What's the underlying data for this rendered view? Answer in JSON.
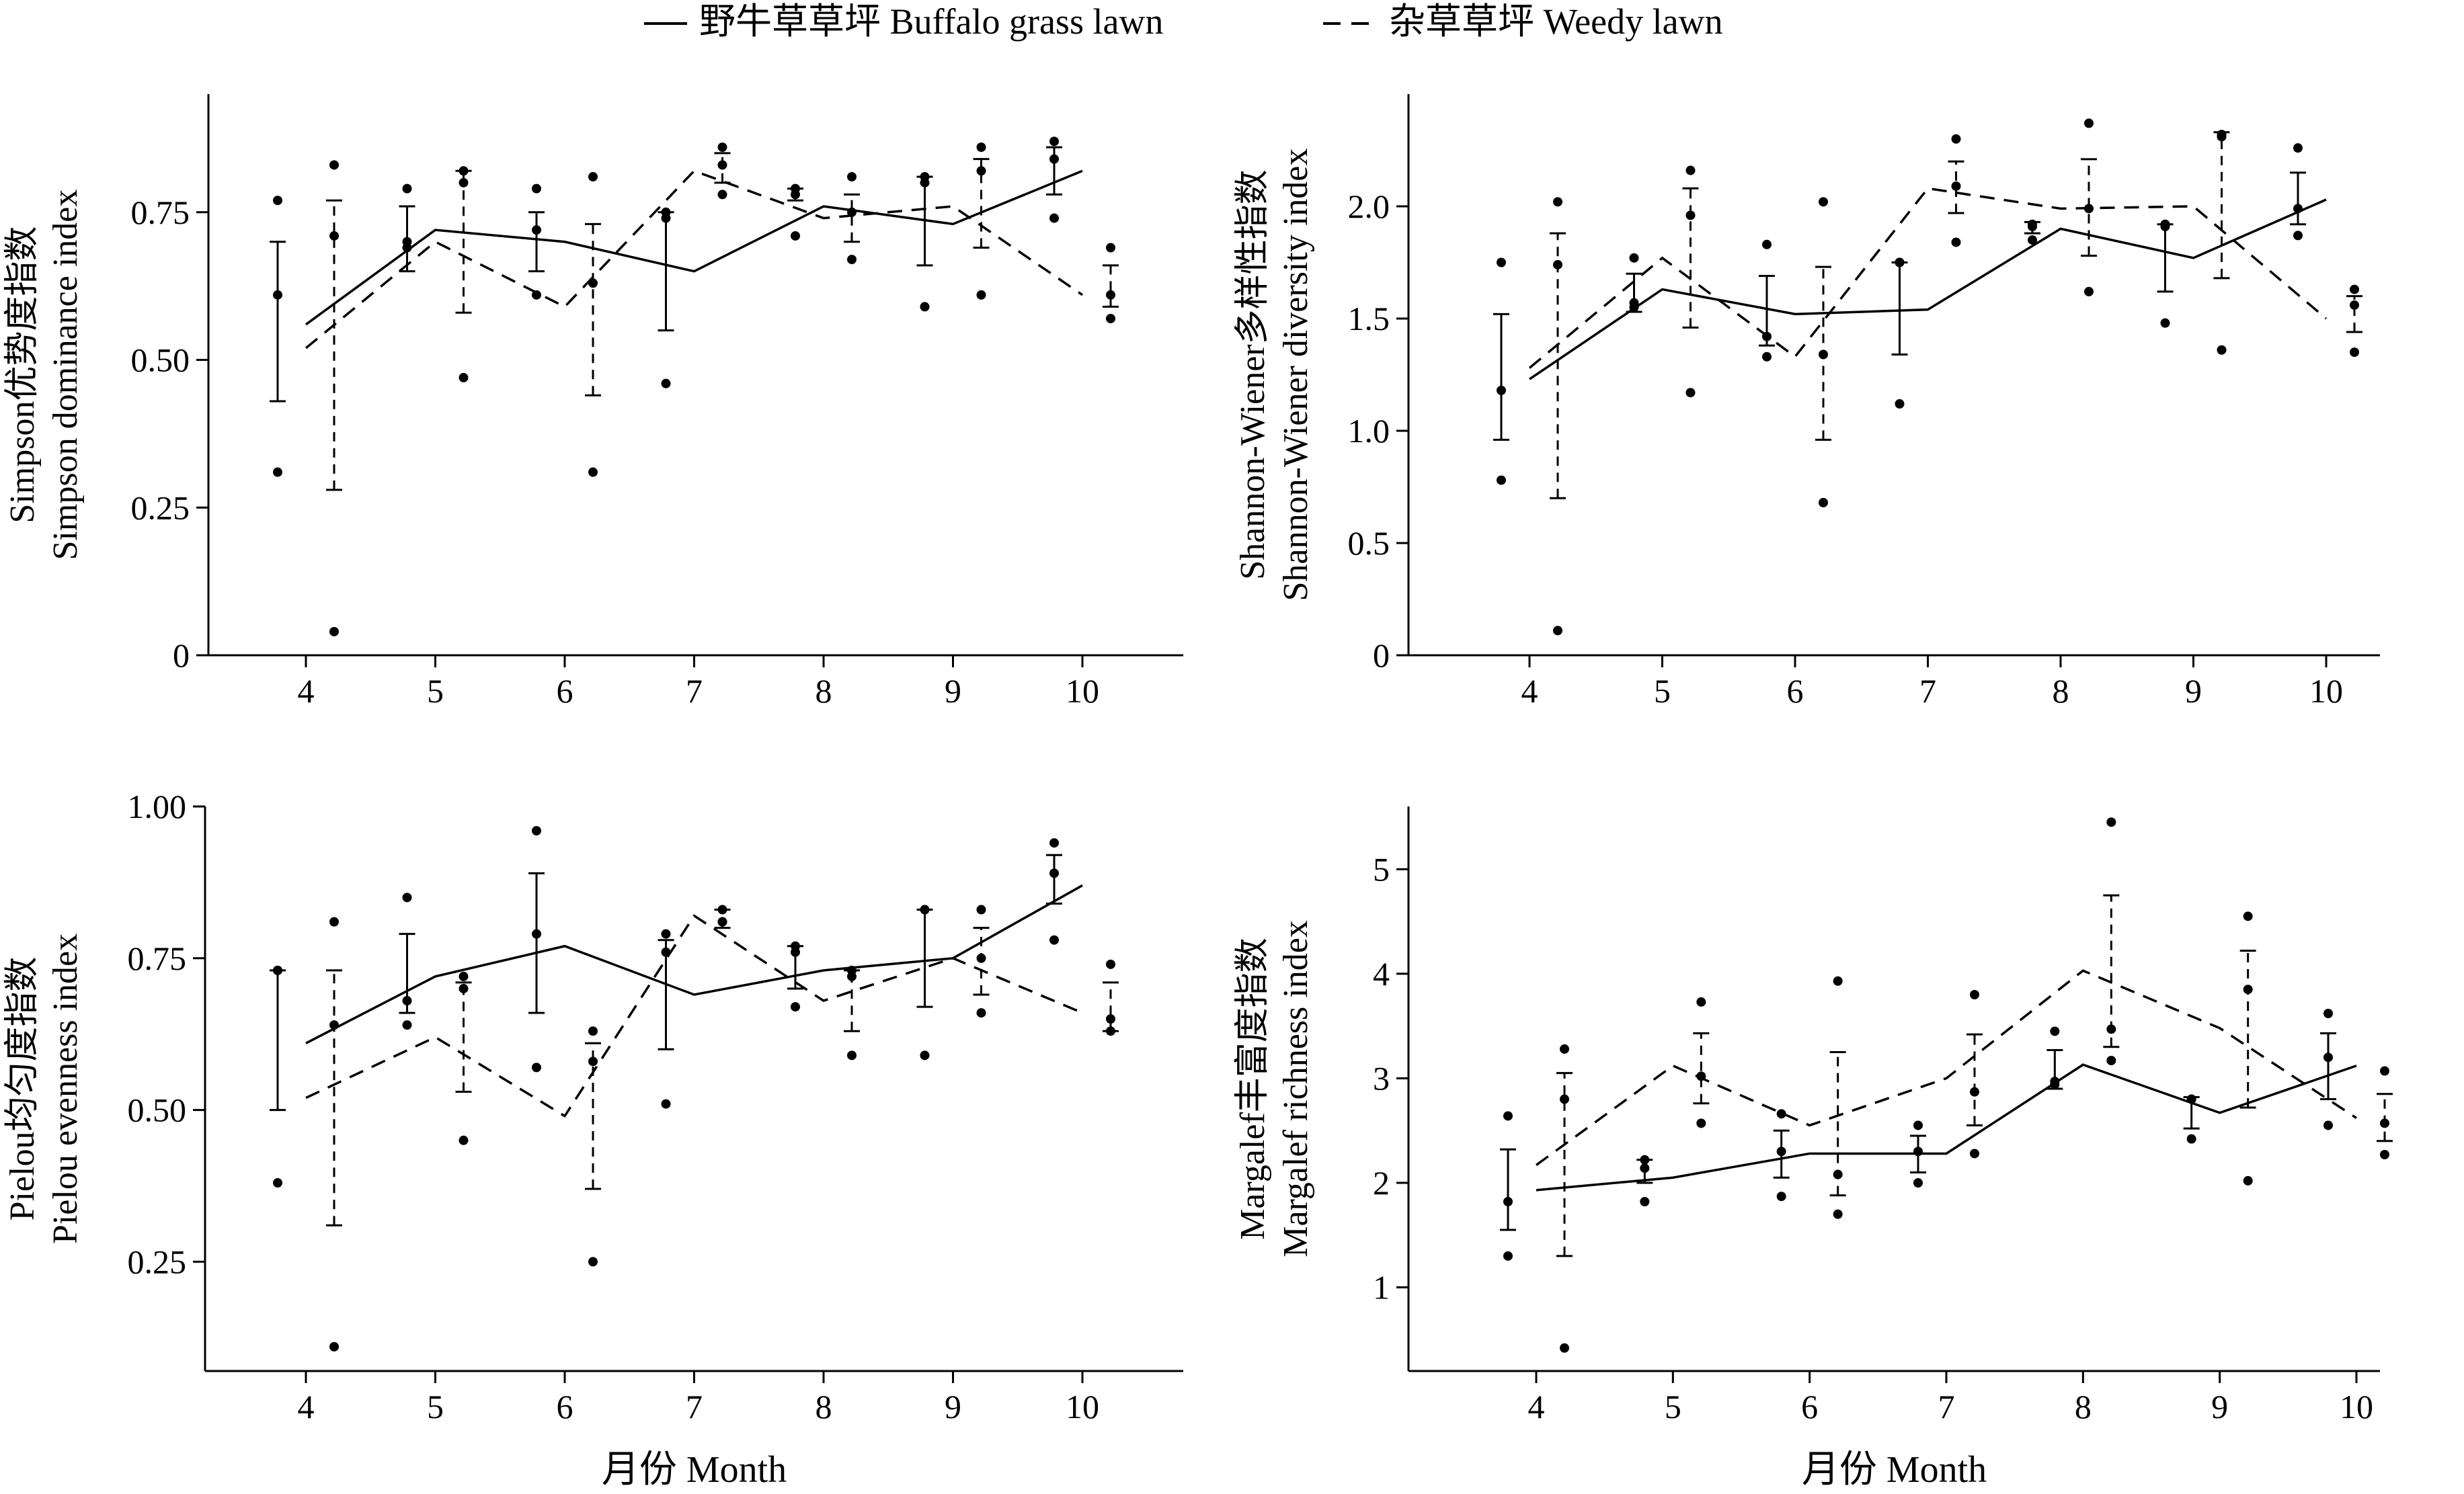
{
  "legend": {
    "solid_label": "野牛草草坪 Buffalo grass lawn",
    "dashed_label": "杂草草坪 Weedy lawn"
  },
  "chart_data": [
    {
      "id": "simpson",
      "type": "line",
      "ylabel_cn": "Simpson优势度指数",
      "ylabel_en": "Simpson dominance index",
      "xlabel": "",
      "ylim": [
        0,
        0.95
      ],
      "yticks": [
        0,
        0.25,
        0.5,
        0.75
      ],
      "ytick_labels": [
        "0",
        "0.25",
        "0.50",
        "0.75"
      ],
      "categories": [
        "4",
        "5",
        "6",
        "7",
        "8",
        "9",
        "10"
      ],
      "series": [
        {
          "name": "野牛草草坪 Buffalo grass lawn",
          "style": "solid",
          "line": [
            0.56,
            0.72,
            0.7,
            0.65,
            0.76,
            0.73,
            0.82
          ],
          "mean": [
            0.61,
            0.69,
            0.72,
            0.74,
            0.78,
            0.79,
            0.83
          ],
          "err_low": [
            0.43,
            0.65,
            0.65,
            0.55,
            0.77,
            0.66,
            0.78
          ],
          "err_high": [
            0.7,
            0.76,
            0.75,
            0.75,
            0.79,
            0.81,
            0.86
          ],
          "points": [
            [
              0.31,
              0.61,
              0.77
            ],
            [
              0.69,
              0.7,
              0.79
            ],
            [
              0.61,
              0.72,
              0.79
            ],
            [
              0.46,
              0.74,
              0.75
            ],
            [
              0.71,
              0.78,
              0.79
            ],
            [
              0.59,
              0.8,
              0.81
            ],
            [
              0.74,
              0.84,
              0.87
            ]
          ]
        },
        {
          "name": "杂草草坪 Weedy lawn",
          "style": "dashed",
          "line": [
            0.52,
            0.7,
            0.59,
            0.82,
            0.74,
            0.76,
            0.61
          ],
          "mean": [
            0.71,
            0.8,
            0.63,
            0.83,
            0.75,
            0.82,
            0.61
          ],
          "err_low": [
            0.28,
            0.58,
            0.44,
            0.8,
            0.7,
            0.69,
            0.59
          ],
          "err_high": [
            0.77,
            0.82,
            0.73,
            0.85,
            0.78,
            0.84,
            0.66
          ],
          "points": [
            [
              0.04,
              0.71,
              0.83
            ],
            [
              0.47,
              0.8,
              0.82
            ],
            [
              0.31,
              0.63,
              0.81
            ],
            [
              0.78,
              0.83,
              0.86
            ],
            [
              0.67,
              0.75,
              0.81
            ],
            [
              0.61,
              0.82,
              0.86
            ],
            [
              0.57,
              0.61,
              0.69
            ]
          ]
        }
      ]
    },
    {
      "id": "shannon",
      "type": "line",
      "ylabel_cn": "Shannon-Wiener多样性指数",
      "ylabel_en": "Shannon-Wiener diversity index",
      "xlabel": "",
      "ylim": [
        0,
        2.5
      ],
      "yticks": [
        0,
        0.5,
        1.0,
        1.5,
        2.0
      ],
      "ytick_labels": [
        "0",
        "0.5",
        "1.0",
        "1.5",
        "2.0"
      ],
      "categories": [
        "4",
        "5",
        "6",
        "7",
        "8",
        "9",
        "10"
      ],
      "series": [
        {
          "name": "野牛草草坪 Buffalo grass lawn",
          "style": "solid",
          "line": [
            1.23,
            1.63,
            1.52,
            1.54,
            1.9,
            1.77,
            2.03
          ],
          "mean": [
            1.18,
            1.57,
            1.42,
            1.75,
            1.91,
            1.91,
            1.99
          ],
          "err_low": [
            0.96,
            1.53,
            1.38,
            1.34,
            1.88,
            1.62,
            1.92
          ],
          "err_high": [
            1.52,
            1.7,
            1.69,
            1.75,
            1.93,
            1.92,
            2.15
          ],
          "points": [
            [
              0.78,
              1.18,
              1.75
            ],
            [
              1.55,
              1.57,
              1.77
            ],
            [
              1.33,
              1.42,
              1.83
            ],
            [
              1.12,
              1.75,
              1.75
            ],
            [
              1.85,
              1.91,
              1.92
            ],
            [
              1.48,
              1.91,
              1.92
            ],
            [
              1.87,
              1.99,
              2.26
            ]
          ]
        },
        {
          "name": "杂草草坪 Weedy lawn",
          "style": "dashed",
          "line": [
            1.28,
            1.77,
            1.33,
            2.08,
            1.99,
            2.0,
            1.5
          ],
          "mean": [
            1.74,
            1.96,
            1.34,
            2.09,
            1.99,
            2.31,
            1.56
          ],
          "err_low": [
            0.7,
            1.46,
            0.96,
            1.97,
            1.78,
            1.68,
            1.44
          ],
          "err_high": [
            1.88,
            2.08,
            1.73,
            2.2,
            2.21,
            2.33,
            1.6
          ],
          "points": [
            [
              0.11,
              1.74,
              2.02
            ],
            [
              1.17,
              1.96,
              2.16
            ],
            [
              0.68,
              1.34,
              2.02
            ],
            [
              1.84,
              2.09,
              2.3
            ],
            [
              1.62,
              1.99,
              2.37
            ],
            [
              1.36,
              2.31,
              2.32
            ],
            [
              1.35,
              1.56,
              1.63
            ]
          ]
        }
      ]
    },
    {
      "id": "pielou",
      "type": "line",
      "ylabel_cn": "Pielou均匀度指数",
      "ylabel_en": "Pielou evenness index",
      "xlabel": "月份 Month",
      "ylim": [
        0.07,
        1.0
      ],
      "yticks": [
        0.25,
        0.5,
        0.75,
        1.0
      ],
      "ytick_labels": [
        "0.25",
        "0.50",
        "0.75",
        "1.00"
      ],
      "categories": [
        "4",
        "5",
        "6",
        "7",
        "8",
        "9",
        "10"
      ],
      "series": [
        {
          "name": "野牛草草坪 Buffalo grass lawn",
          "style": "solid",
          "line": [
            0.61,
            0.72,
            0.77,
            0.69,
            0.73,
            0.75,
            0.87
          ],
          "mean": [
            0.73,
            0.68,
            0.79,
            0.76,
            0.76,
            0.83,
            0.89
          ],
          "err_low": [
            0.5,
            0.66,
            0.66,
            0.6,
            0.7,
            0.67,
            0.84
          ],
          "err_high": [
            0.73,
            0.79,
            0.89,
            0.78,
            0.77,
            0.83,
            0.92
          ],
          "points": [
            [
              0.38,
              0.73,
              0.73
            ],
            [
              0.64,
              0.68,
              0.85
            ],
            [
              0.57,
              0.79,
              0.96
            ],
            [
              0.51,
              0.76,
              0.79
            ],
            [
              0.67,
              0.76,
              0.77
            ],
            [
              0.59,
              0.83,
              0.83
            ],
            [
              0.78,
              0.89,
              0.94
            ]
          ]
        },
        {
          "name": "杂草草坪 Weedy lawn",
          "style": "dashed",
          "line": [
            0.52,
            0.62,
            0.49,
            0.82,
            0.68,
            0.75,
            0.66
          ],
          "mean": [
            0.64,
            0.7,
            0.58,
            0.81,
            0.72,
            0.75,
            0.65
          ],
          "err_low": [
            0.31,
            0.53,
            0.37,
            0.8,
            0.63,
            0.69,
            0.63
          ],
          "err_high": [
            0.73,
            0.71,
            0.61,
            0.83,
            0.73,
            0.8,
            0.71
          ],
          "points": [
            [
              0.11,
              0.64,
              0.81
            ],
            [
              0.45,
              0.7,
              0.72
            ],
            [
              0.25,
              0.58,
              0.63
            ],
            [
              0.81,
              0.81,
              0.83
            ],
            [
              0.59,
              0.72,
              0.73
            ],
            [
              0.66,
              0.75,
              0.83
            ],
            [
              0.63,
              0.65,
              0.74
            ]
          ]
        }
      ]
    },
    {
      "id": "margalef",
      "type": "line",
      "ylabel_cn": "Margalef丰富度指数",
      "ylabel_en": "Margalef richness index",
      "xlabel": "月份 Month",
      "ylim": [
        0.2,
        5.6
      ],
      "yticks": [
        1,
        2,
        3,
        4,
        5
      ],
      "ytick_labels": [
        "1",
        "2",
        "3",
        "4",
        "5"
      ],
      "categories": [
        "4",
        "5",
        "6",
        "7",
        "8",
        "9",
        "10"
      ],
      "series": [
        {
          "name": "野牛草草坪 Buffalo grass lawn",
          "style": "solid",
          "line": [
            1.93,
            2.05,
            2.28,
            2.28,
            3.13,
            2.67,
            3.12
          ],
          "mean": [
            1.82,
            2.14,
            2.3,
            2.3,
            2.97,
            2.8,
            3.2
          ],
          "err_low": [
            1.55,
            2.0,
            2.05,
            2.1,
            2.9,
            2.52,
            2.8
          ],
          "err_high": [
            2.32,
            2.22,
            2.5,
            2.45,
            3.27,
            2.82,
            3.43
          ],
          "points": [
            [
              1.3,
              1.82,
              2.64
            ],
            [
              1.82,
              2.14,
              2.22
            ],
            [
              1.87,
              2.3,
              2.66
            ],
            [
              2.0,
              2.3,
              2.55
            ],
            [
              2.94,
              2.97,
              3.45
            ],
            [
              2.42,
              2.8,
              2.8
            ],
            [
              2.55,
              3.2,
              3.62
            ]
          ]
        },
        {
          "name": "杂草草坪 Weedy lawn",
          "style": "dashed",
          "line": [
            2.17,
            3.12,
            2.55,
            3.0,
            4.03,
            3.48,
            2.62
          ],
          "mean": [
            2.8,
            3.02,
            2.08,
            2.87,
            3.47,
            3.85,
            2.57
          ],
          "err_low": [
            1.3,
            2.76,
            1.88,
            2.55,
            3.3,
            2.72,
            2.4
          ],
          "err_high": [
            3.05,
            3.43,
            3.25,
            3.42,
            4.75,
            4.22,
            2.85
          ],
          "points": [
            [
              0.42,
              2.8,
              3.28
            ],
            [
              2.57,
              3.02,
              3.73
            ],
            [
              1.7,
              2.08,
              3.93
            ],
            [
              2.28,
              2.87,
              3.8
            ],
            [
              3.17,
              3.47,
              5.45
            ],
            [
              2.02,
              3.85,
              4.55
            ],
            [
              2.27,
              2.57,
              3.07
            ]
          ]
        }
      ]
    }
  ]
}
